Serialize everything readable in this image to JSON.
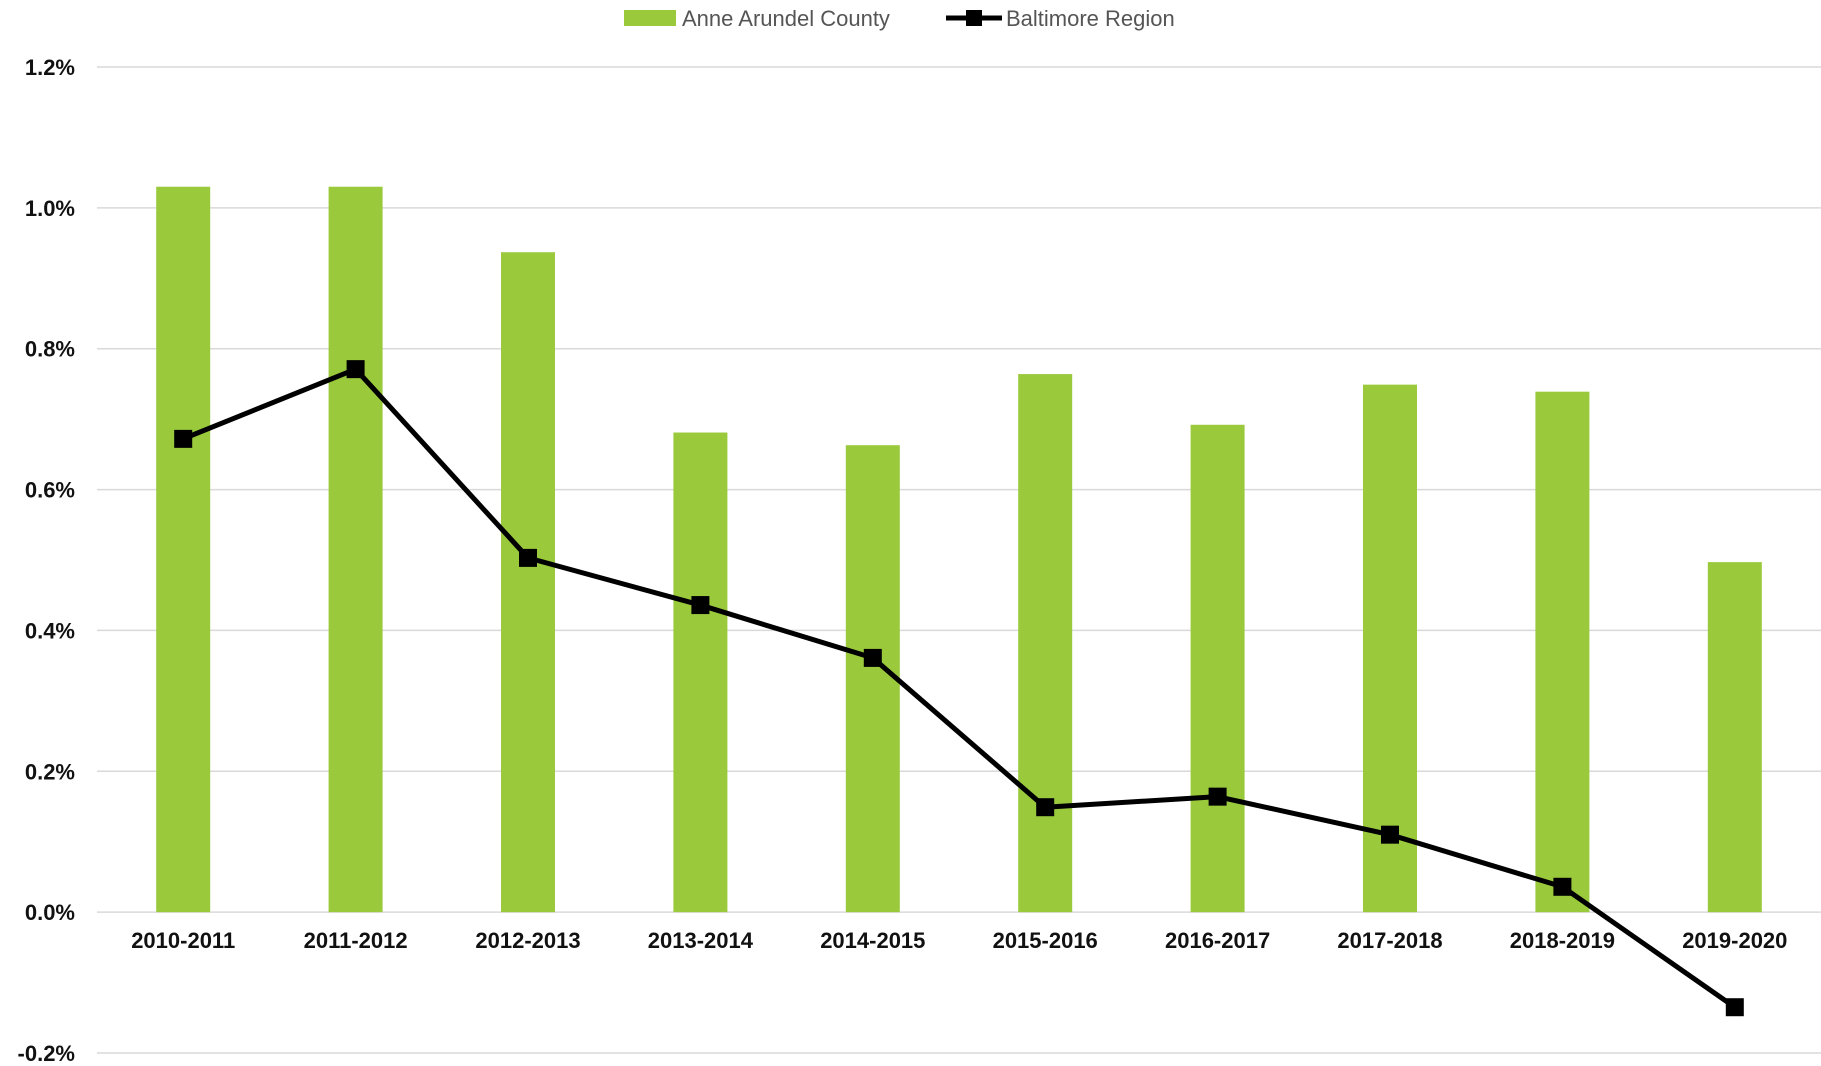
{
  "chart_data": {
    "type": "bar",
    "categories": [
      "2010-2011",
      "2011-2012",
      "2012-2013",
      "2013-2014",
      "2014-2015",
      "2015-2016",
      "2016-2017",
      "2017-2018",
      "2018-2019",
      "2019-2020"
    ],
    "series": [
      {
        "name": "Anne Arundel County",
        "render": "bar",
        "color": "#9ACA3C",
        "values": [
          1.03,
          1.03,
          0.937,
          0.681,
          0.663,
          0.764,
          0.692,
          0.749,
          0.739,
          0.497
        ]
      },
      {
        "name": "Baltimore Region",
        "render": "line",
        "color": "#000000",
        "marker": "square",
        "values": [
          0.672,
          0.771,
          0.503,
          0.436,
          0.361,
          0.149,
          0.164,
          0.11,
          0.036,
          -0.135
        ]
      }
    ],
    "ylim": [
      -0.2,
      1.2
    ],
    "yticks": [
      "1.2%",
      "1.0%",
      "0.8%",
      "0.6%",
      "0.4%",
      "0.2%",
      "0.0%",
      "-0.2%"
    ],
    "ytick_values": [
      1.2,
      1.0,
      0.8,
      0.6,
      0.4,
      0.2,
      0.0,
      -0.2
    ],
    "grid": true,
    "legend_position": "top-center",
    "title": "",
    "xlabel": "",
    "ylabel": ""
  }
}
